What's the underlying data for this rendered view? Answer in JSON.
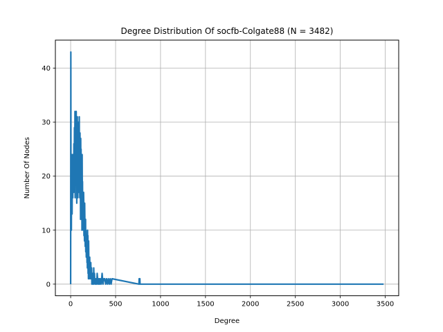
{
  "chart_data": {
    "type": "line",
    "title": "Degree Distribution Of socfb-Colgate88 (N = 3482)",
    "xlabel": "Degree",
    "ylabel": "Number Of Nodes",
    "xlim": [
      -170,
      3650
    ],
    "ylim": [
      -2.15,
      45.2
    ],
    "xticks": [
      0,
      500,
      1000,
      1500,
      2000,
      2500,
      3000,
      3500
    ],
    "xtick_labels": [
      "0",
      "500",
      "1000",
      "1500",
      "2000",
      "2500",
      "3000",
      "3500"
    ],
    "yticks": [
      0,
      10,
      20,
      30,
      40
    ],
    "ytick_labels": [
      "0",
      "10",
      "20",
      "30",
      "40"
    ],
    "grid": true,
    "legend": "none",
    "series": [
      {
        "color": "#1f77b4",
        "x": [
          0,
          2,
          4,
          6,
          8,
          10,
          12,
          14,
          16,
          18,
          20,
          22,
          24,
          26,
          28,
          30,
          32,
          34,
          36,
          38,
          40,
          42,
          44,
          46,
          48,
          50,
          52,
          54,
          56,
          58,
          60,
          62,
          64,
          66,
          68,
          70,
          72,
          74,
          76,
          78,
          80,
          82,
          84,
          86,
          88,
          90,
          92,
          94,
          96,
          98,
          100,
          102,
          104,
          106,
          108,
          110,
          112,
          114,
          116,
          118,
          120,
          122,
          124,
          126,
          128,
          130,
          132,
          134,
          136,
          138,
          140,
          142,
          144,
          146,
          148,
          150,
          152,
          154,
          156,
          158,
          160,
          162,
          164,
          166,
          168,
          170,
          172,
          174,
          176,
          178,
          180,
          182,
          184,
          186,
          188,
          190,
          192,
          194,
          196,
          198,
          200,
          203,
          206,
          209,
          212,
          215,
          218,
          221,
          224,
          227,
          230,
          233,
          236,
          239,
          242,
          245,
          248,
          251,
          254,
          257,
          260,
          265,
          270,
          275,
          280,
          285,
          290,
          295,
          300,
          305,
          310,
          315,
          320,
          325,
          330,
          340,
          350,
          360,
          370,
          380,
          390,
          400,
          410,
          420,
          430,
          440,
          450,
          460,
          760,
          762,
          764,
          766,
          768,
          770,
          772,
          3482
        ],
        "y": [
          0,
          43,
          12,
          18,
          10,
          22,
          15,
          24,
          13,
          20,
          17,
          21,
          16,
          24,
          18,
          19,
          23,
          17,
          26,
          20,
          22,
          29,
          18,
          25,
          32,
          16,
          27,
          21,
          30,
          19,
          24,
          32,
          20,
          27,
          15,
          29,
          22,
          31,
          18,
          25,
          16,
          28,
          21,
          30,
          17,
          23,
          27,
          19,
          31,
          20,
          24,
          16,
          28,
          18,
          22,
          12,
          27,
          19,
          25,
          14,
          24,
          17,
          20,
          10,
          24,
          16,
          19,
          12,
          13,
          11,
          14,
          10,
          17,
          15,
          9,
          13,
          11,
          8,
          15,
          12,
          10,
          7,
          9,
          12,
          6,
          10,
          8,
          5,
          9,
          6,
          8,
          4,
          7,
          3,
          10,
          5,
          9,
          2,
          6,
          1,
          8,
          3,
          4,
          1,
          5,
          2,
          3,
          1,
          4,
          2,
          1,
          3,
          0,
          2,
          1,
          2,
          0,
          1,
          0,
          3,
          1,
          2,
          0,
          1,
          0,
          1,
          0,
          2,
          1,
          0,
          1,
          0,
          1,
          0,
          1,
          0,
          2,
          0,
          1,
          1,
          0,
          1,
          0,
          1,
          0,
          1,
          0,
          1,
          0,
          1,
          0,
          1,
          0,
          1,
          0,
          0
        ]
      }
    ]
  }
}
